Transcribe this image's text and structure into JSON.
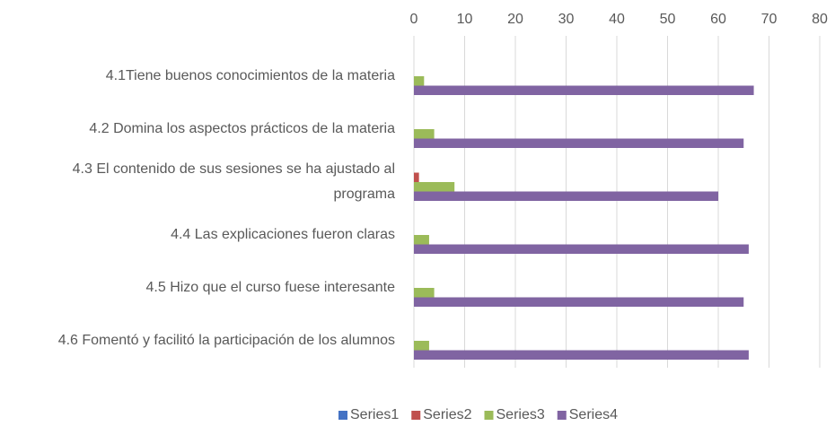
{
  "chart_data": {
    "type": "hbar",
    "categories": [
      "4.1Tiene buenos conocimientos de la materia",
      "4.2 Domina los aspectos prácticos de la materia",
      "4.3 El contenido de sus sesiones se ha ajustado al programa",
      "4.4 Las explicaciones fueron claras",
      "4.5 Hizo que el curso fuese interesante",
      "4.6 Fomentó y facilitó la participación de los alumnos"
    ],
    "series": [
      {
        "name": "Series1",
        "color": "#4472c4",
        "values": [
          0,
          0,
          0,
          0,
          0,
          0
        ]
      },
      {
        "name": "Series2",
        "color": "#c0504d",
        "values": [
          0,
          0,
          1,
          0,
          0,
          0
        ]
      },
      {
        "name": "Series3",
        "color": "#9bbb59",
        "values": [
          2,
          4,
          8,
          3,
          4,
          3
        ]
      },
      {
        "name": "Series4",
        "color": "#8064a2",
        "values": [
          67,
          65,
          60,
          66,
          65,
          66
        ]
      }
    ],
    "xlim": [
      0,
      80
    ],
    "xticks": [
      0,
      10,
      20,
      30,
      40,
      50,
      60,
      70,
      80
    ],
    "grid": true,
    "legend": "bottom"
  }
}
